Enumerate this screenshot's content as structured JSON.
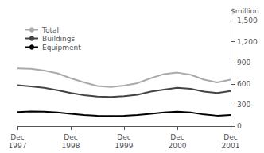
{
  "chart_data": {
    "type": "line",
    "categories": [
      "Dec\n1997",
      null,
      null,
      null,
      "Dec\n1998",
      null,
      null,
      null,
      "Dec\n1999",
      null,
      null,
      null,
      "Dec\n2000",
      null,
      null,
      null,
      "Dec\n2001"
    ],
    "series": [
      {
        "name": "Total",
        "color": "#aaaaaa",
        "values": [
          820,
          815,
          790,
          750,
          680,
          620,
          570,
          555,
          575,
          610,
          680,
          740,
          760,
          730,
          660,
          620,
          660
        ]
      },
      {
        "name": "Buildings",
        "color": "#444444",
        "values": [
          580,
          565,
          545,
          510,
          470,
          440,
          420,
          415,
          425,
          445,
          490,
          520,
          545,
          530,
          490,
          470,
          500
        ]
      },
      {
        "name": "Equipment",
        "color": "#000000",
        "values": [
          200,
          210,
          205,
          195,
          175,
          158,
          148,
          145,
          148,
          158,
          175,
          195,
          205,
          195,
          165,
          148,
          158
        ]
      }
    ],
    "ylabel": "$million",
    "ylim": [
      0,
      1500
    ],
    "yticks": [
      0,
      300,
      600,
      900,
      1200,
      1500
    ],
    "grid": false,
    "legend": "upper left"
  }
}
